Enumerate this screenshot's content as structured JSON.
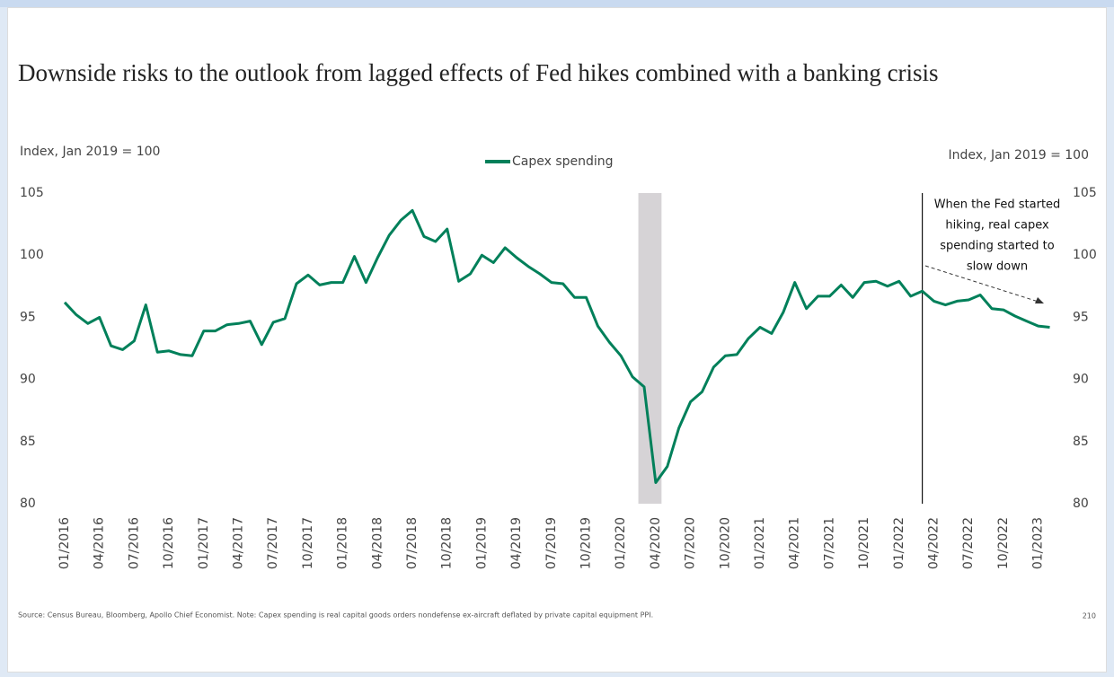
{
  "chart_data": {
    "type": "line",
    "title": "Downside risks to the outlook from lagged effects of Fed hikes combined with a banking crisis",
    "y_label": "Index, Jan 2019 = 100",
    "y2_label": "Index, Jan 2019 = 100",
    "categories": [
      "01/2016",
      null,
      null,
      "04/2016",
      null,
      null,
      "07/2016",
      null,
      null,
      "10/2016",
      null,
      null,
      "01/2017",
      null,
      null,
      "04/2017",
      null,
      null,
      "07/2017",
      null,
      null,
      "10/2017",
      null,
      null,
      "01/2018",
      null,
      null,
      "04/2018",
      null,
      null,
      "07/2018",
      null,
      null,
      "10/2018",
      null,
      null,
      "01/2019",
      null,
      null,
      "04/2019",
      null,
      null,
      "07/2019",
      null,
      null,
      "10/2019",
      null,
      null,
      "01/2020",
      null,
      null,
      "04/2020",
      null,
      null,
      "07/2020",
      null,
      null,
      "10/2020",
      null,
      null,
      "01/2021",
      null,
      null,
      "04/2021",
      null,
      null,
      "07/2021",
      null,
      null,
      "10/2021",
      null,
      null,
      "01/2022",
      null,
      null,
      "04/2022",
      null,
      null,
      "07/2022",
      null,
      null,
      "10/2022",
      null,
      null,
      "01/2023",
      null
    ],
    "series": [
      {
        "name": "Capex spending",
        "color": "#00805a",
        "values": [
          96.2,
          95.2,
          94.5,
          95.0,
          92.7,
          92.4,
          93.1,
          96.0,
          92.2,
          92.3,
          92.0,
          91.9,
          93.9,
          93.9,
          94.4,
          94.5,
          94.7,
          92.8,
          94.6,
          94.9,
          97.7,
          98.4,
          97.6,
          97.8,
          97.8,
          99.9,
          97.8,
          99.8,
          101.6,
          102.8,
          103.6,
          101.5,
          101.1,
          102.1,
          97.9,
          98.5,
          100.0,
          99.4,
          100.6,
          99.8,
          99.1,
          98.5,
          97.8,
          97.7,
          96.6,
          96.6,
          94.3,
          93.0,
          91.9,
          90.2,
          89.4,
          81.7,
          83.0,
          86.1,
          88.2,
          89.0,
          91.0,
          91.9,
          92.0,
          93.3,
          94.2,
          93.7,
          95.4,
          97.8,
          95.7,
          96.7,
          96.7,
          97.6,
          96.6,
          97.8,
          97.9,
          97.5,
          97.9,
          96.7,
          97.1,
          96.3,
          96.0,
          96.3,
          96.4,
          96.8,
          95.7,
          95.6,
          95.1,
          94.7,
          94.3,
          94.2
        ]
      }
    ],
    "ylim": [
      80,
      105
    ],
    "yticks": [
      80,
      85,
      90,
      95,
      100,
      105
    ],
    "y2lim": [
      80,
      105
    ],
    "y2ticks": [
      80,
      85,
      90,
      95,
      100,
      105
    ],
    "grid": false,
    "legend": "top",
    "shade_from": 50,
    "shade_to": 51,
    "shade_color": "#d6d3d6",
    "event_index": 74,
    "annotation": [
      "When the Fed started",
      "hiking, real capex",
      "spending started to",
      "slow down"
    ],
    "source": "Source: Census Bureau, Bloomberg, Apollo Chief Economist. Note: Capex spending is real capital goods orders nondefense ex-aircraft deflated by private capital equipment PPI.",
    "page_number": "210"
  }
}
